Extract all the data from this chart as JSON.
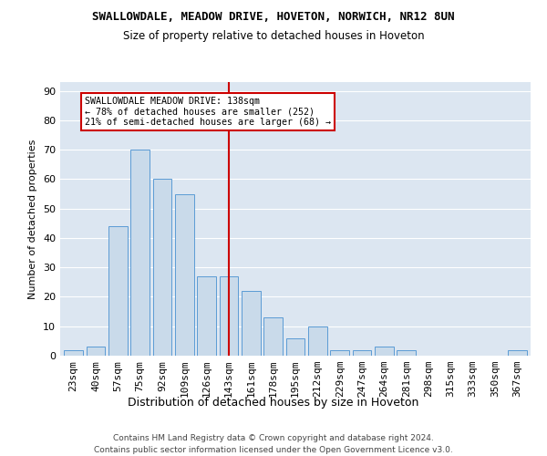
{
  "title": "SWALLOWDALE, MEADOW DRIVE, HOVETON, NORWICH, NR12 8UN",
  "subtitle": "Size of property relative to detached houses in Hoveton",
  "xlabel": "Distribution of detached houses by size in Hoveton",
  "ylabel": "Number of detached properties",
  "categories": [
    "23sqm",
    "40sqm",
    "57sqm",
    "75sqm",
    "92sqm",
    "109sqm",
    "126sqm",
    "143sqm",
    "161sqm",
    "178sqm",
    "195sqm",
    "212sqm",
    "229sqm",
    "247sqm",
    "264sqm",
    "281sqm",
    "298sqm",
    "315sqm",
    "333sqm",
    "350sqm",
    "367sqm"
  ],
  "values": [
    2,
    3,
    44,
    70,
    60,
    55,
    27,
    27,
    22,
    13,
    6,
    10,
    2,
    2,
    3,
    2,
    0,
    0,
    0,
    0,
    2
  ],
  "bar_color": "#c9daea",
  "bar_edge_color": "#5b9bd5",
  "grid_color": "#ffffff",
  "bg_color": "#dce6f1",
  "marker_bin_index": 7,
  "marker_color": "#cc0000",
  "annotation_line1": "SWALLOWDALE MEADOW DRIVE: 138sqm",
  "annotation_line2": "← 78% of detached houses are smaller (252)",
  "annotation_line3": "21% of semi-detached houses are larger (68) →",
  "annotation_box_color": "#ffffff",
  "annotation_border_color": "#cc0000",
  "ylim": [
    0,
    93
  ],
  "yticks": [
    0,
    10,
    20,
    30,
    40,
    50,
    60,
    70,
    80,
    90
  ],
  "footer_line1": "Contains HM Land Registry data © Crown copyright and database right 2024.",
  "footer_line2": "Contains public sector information licensed under the Open Government Licence v3.0."
}
